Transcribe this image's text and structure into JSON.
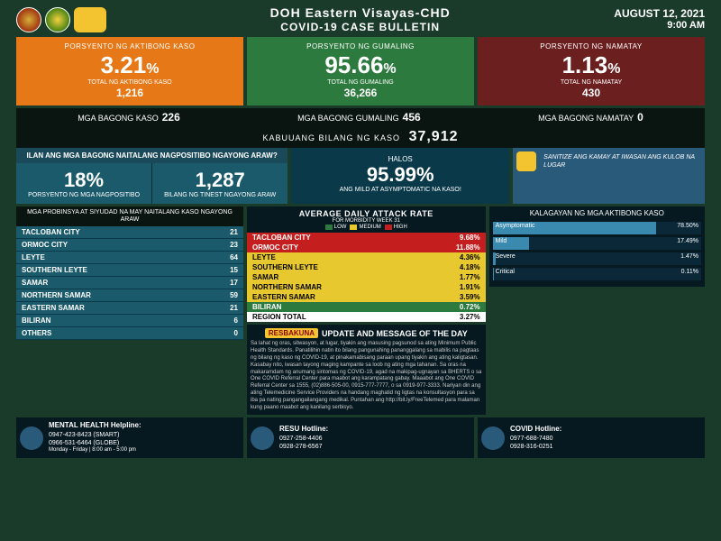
{
  "header": {
    "title1": "DOH Eastern Visayas-CHD",
    "title2": "COVID-19 CASE BULLETIN",
    "date": "AUGUST 12, 2021",
    "time": "9:00 AM"
  },
  "stats": [
    {
      "label": "PORSYENTO NG AKTIBONG KASO",
      "pct": "3.21",
      "sub": "TOTAL NG AKTIBONG KASO",
      "num": "1,216",
      "bg": "sb-orange"
    },
    {
      "label": "PORSYENTO NG GUMALING",
      "pct": "95.66",
      "sub": "TOTAL NG GUMALING",
      "num": "36,266",
      "bg": "sb-green"
    },
    {
      "label": "PORSYENTO NG NAMATAY",
      "pct": "1.13",
      "sub": "TOTAL NG NAMATAY",
      "num": "430",
      "bg": "sb-maroon"
    }
  ],
  "newstats": [
    {
      "label": "MGA BAGONG KASO",
      "val": "226"
    },
    {
      "label": "MGA BAGONG GUMALING",
      "val": "456"
    },
    {
      "label": "MGA BAGONG NAMATAY",
      "val": "0"
    }
  ],
  "total": {
    "label": "KABUUANG BILANG NG KASO",
    "val": "37,912"
  },
  "positivity": {
    "head": "ILAN ANG MGA BAGONG NAITALANG NAGPOSITIBO NGAYONG ARAW?",
    "cells": [
      {
        "big": "18%",
        "sub": "PORSYENTO NG MGA NAGPOSITIBO"
      },
      {
        "big": "1,287",
        "sub": "BILANG NG TINEST NGAYONG ARAW"
      }
    ]
  },
  "halos": {
    "top": "HALOS",
    "pct": "95.99%",
    "sub": "ANG MILD AT ASYMPTOMATIC NA KASO!"
  },
  "bida": {
    "text": "SANITIZE ANG KAMAY AT IWASAN ANG KULOB NA LUGAR"
  },
  "provinces": {
    "head": "MGA PROBINSYA AT SIYUDAD NA MAY NAITALANG KASO NGAYONG ARAW",
    "rows": [
      {
        "n": "TACLOBAN CITY",
        "v": "21"
      },
      {
        "n": "ORMOC CITY",
        "v": "23"
      },
      {
        "n": "LEYTE",
        "v": "64"
      },
      {
        "n": "SOUTHERN LEYTE",
        "v": "15"
      },
      {
        "n": "SAMAR",
        "v": "17"
      },
      {
        "n": "NORTHERN SAMAR",
        "v": "59"
      },
      {
        "n": "EASTERN SAMAR",
        "v": "21"
      },
      {
        "n": "BILIRAN",
        "v": "6"
      },
      {
        "n": "OTHERS",
        "v": "0"
      }
    ]
  },
  "attack": {
    "title": "AVERAGE DAILY ATTACK RATE",
    "sub": "FOR MORBIDITY WEEK 31",
    "legend": [
      {
        "t": "LOW",
        "c": "#2d7a3e"
      },
      {
        "t": "MEDIUM",
        "c": "#e8c82f"
      },
      {
        "t": "HIGH",
        "c": "#c41e1e"
      }
    ],
    "rows": [
      {
        "n": "TACLOBAN CITY",
        "v": "9.68%",
        "cls": "ar-red"
      },
      {
        "n": "ORMOC CITY",
        "v": "11.88%",
        "cls": "ar-red"
      },
      {
        "n": "LEYTE",
        "v": "4.36%",
        "cls": "ar-yellow"
      },
      {
        "n": "SOUTHERN LEYTE",
        "v": "4.18%",
        "cls": "ar-yellow"
      },
      {
        "n": "SAMAR",
        "v": "1.77%",
        "cls": "ar-yellow"
      },
      {
        "n": "NORTHERN SAMAR",
        "v": "1.91%",
        "cls": "ar-yellow"
      },
      {
        "n": "EASTERN SAMAR",
        "v": "3.59%",
        "cls": "ar-yellow"
      },
      {
        "n": "BILIRAN",
        "v": "0.72%",
        "cls": "ar-green"
      },
      {
        "n": "REGION TOTAL",
        "v": "3.27%",
        "cls": "ar-total"
      }
    ]
  },
  "kalagayan": {
    "head": "KALAGAYAN NG MGA AKTIBONG KASO",
    "bars": [
      {
        "lbl": "Asymptomatic",
        "val": "78.50%",
        "w": 78.5
      },
      {
        "lbl": "Mild",
        "val": "17.49%",
        "w": 17.49
      },
      {
        "lbl": "Severe",
        "val": "1.47%",
        "w": 1.47
      },
      {
        "lbl": "Critical",
        "val": "0.11%",
        "w": 0.5
      }
    ]
  },
  "update": {
    "badge": "RESBAKUNA",
    "badgesub": "KASANGGA NG BIDA",
    "title": "UPDATE AND MESSAGE OF THE DAY",
    "body": "Sa lahat ng oras, sitwasyon, at lugar, tiyakin ang masusing pagsunod sa ating Minimum Public Health Standards. Panatilihin natin ito bilang pangunahing pananggalang sa mabilis na pagtaas ng bilang ng kaso ng COVID-19, at pinakamabisang paraan upang tiyakin ang ating kaligtasan. Kasabay nito, iwasan tayong maging kampante sa loob ng ating mga tahanan. Sa oras na makaramdam ng anumang sintomas ng COVID-19, agad na makipag-ugnayan sa BHERTS o sa One COVID Referral Center para maabot ang karampatang gabay. Maaabot ang One COVID Referral Center sa 1555, (02)886-505-00, 0915-777-7777, o sa 0919-977-3333. Nariyan din ang ating Telemedicine Service Providers na handang maghatid ng ligtas na konsultasyon para sa iba pa nating pangangailangang medikal. Puntahan ang http://bit.ly/FreeTelemed para malaman kung paano maabot ang kanilang serbisyo."
  },
  "footer": [
    {
      "t": "MENTAL HEALTH Helpline:",
      "l1": "0947-423-8423 (SMART)",
      "l2": "0966-531-6464 (GLOBE)",
      "l3": "Monday - Friday | 8:00 am - 5:00 pm"
    },
    {
      "t": "RESU Hotline:",
      "l1": "0927-258-4406",
      "l2": "0928-278-6567",
      "l3": ""
    },
    {
      "t": "COVID Hotline:",
      "l1": "0977-688-7480",
      "l2": "0928-316-0251",
      "l3": ""
    }
  ]
}
